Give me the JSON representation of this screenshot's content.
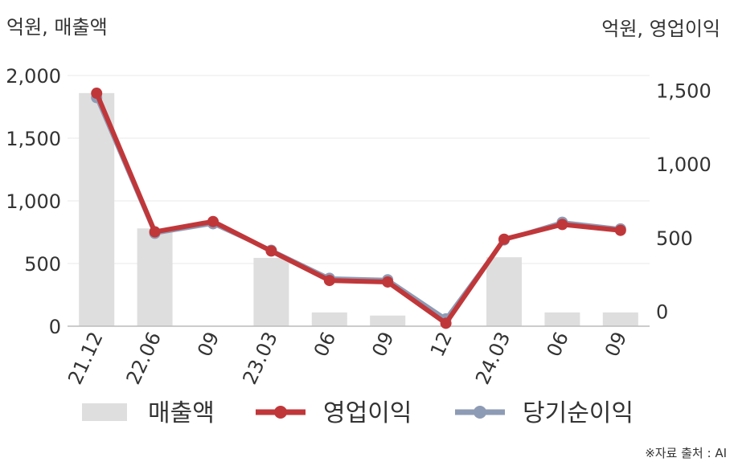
{
  "chart_data": {
    "type": "bar+line",
    "unit_left": "억원, 매출액",
    "unit_right": "억원, 영업이익",
    "categories": [
      "21.12",
      "22.06",
      "09",
      "23.03",
      "06",
      "09",
      "12",
      "24.03",
      "06",
      "09"
    ],
    "y_left": {
      "min": 0,
      "max": 2000,
      "ticks": [
        "0",
        "500",
        "1,000",
        "1,500",
        "2,000"
      ]
    },
    "y_right": {
      "min": -100,
      "max": 1600,
      "ticks": [
        "0",
        "500",
        "1,000",
        "1,500"
      ]
    },
    "series": [
      {
        "name": "매출액",
        "kind": "bar",
        "axis": "left",
        "color": "#dedede",
        "values": [
          1860,
          780,
          0,
          545,
          110,
          85,
          null,
          550,
          110,
          110
        ]
      },
      {
        "name": "영업이익",
        "kind": "line",
        "axis": "right",
        "color": "#c0373a",
        "values": [
          1480,
          540,
          610,
          410,
          210,
          200,
          -80,
          490,
          590,
          550
        ]
      },
      {
        "name": "당기순이익",
        "kind": "line",
        "axis": "right",
        "color": "#8e9bb5",
        "values": [
          1450,
          530,
          595,
          415,
          225,
          215,
          -50,
          485,
          605,
          560
        ]
      }
    ],
    "grid": true,
    "legend_position": "bottom"
  },
  "source": "※자료 출처 : AI"
}
